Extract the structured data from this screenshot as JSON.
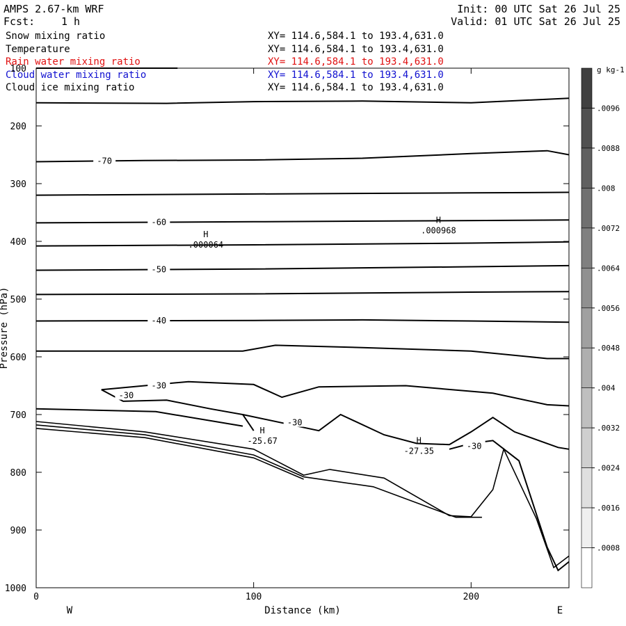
{
  "header": {
    "model": "AMPS 2.67-km WRF",
    "forecast_label": "Fcst:",
    "forecast_value": "1 h",
    "init": "Init: 00 UTC Sat 26 Jul 25",
    "valid": "Valid: 01 UTC Sat 26 Jul 25"
  },
  "fields": [
    {
      "name": "Snow mixing ratio",
      "xy": "XY= 114.6,584.1 to 193.4,631.0",
      "color": "#000000"
    },
    {
      "name": "Temperature",
      "xy": "XY= 114.6,584.1 to 193.4,631.0",
      "color": "#000000"
    },
    {
      "name": "Rain water mixing ratio",
      "xy": "XY= 114.6,584.1 to 193.4,631.0",
      "color": "#e01010"
    },
    {
      "name": "Cloud water mixing ratio",
      "xy": "XY= 114.6,584.1 to 193.4,631.0",
      "color": "#1010d0"
    },
    {
      "name": "Cloud ice mixing ratio",
      "xy": "XY= 114.6,584.1 to 193.4,631.0",
      "color": "#000000"
    }
  ],
  "chart_data": {
    "type": "contour",
    "xlabel": "Distance (km)",
    "ylabel": "Pressure (hPa)",
    "xlim": [
      0,
      245
    ],
    "ylim": [
      1000,
      100
    ],
    "xticks": [
      0,
      100,
      200
    ],
    "yticks": [
      100,
      200,
      300,
      400,
      500,
      600,
      700,
      800,
      900,
      1000
    ],
    "x_end_labels": {
      "left": "W",
      "right": "E"
    },
    "temperature_contours_C": [
      {
        "label": "-70",
        "points": [
          [
            0,
            262
          ],
          [
            50,
            260
          ],
          [
            100,
            259
          ],
          [
            150,
            256
          ],
          [
            200,
            248
          ],
          [
            235,
            243
          ],
          [
            245,
            250
          ]
        ]
      },
      {
        "label": "",
        "points": [
          [
            0,
            320
          ],
          [
            100,
            318
          ],
          [
            200,
            316
          ],
          [
            245,
            315
          ]
        ]
      },
      {
        "label": "-60",
        "points": [
          [
            0,
            368
          ],
          [
            100,
            366
          ],
          [
            200,
            364
          ],
          [
            245,
            363
          ]
        ]
      },
      {
        "label": "",
        "points": [
          [
            0,
            408
          ],
          [
            100,
            406
          ],
          [
            200,
            403
          ],
          [
            245,
            401
          ]
        ]
      },
      {
        "label": "-50",
        "points": [
          [
            0,
            450
          ],
          [
            100,
            448
          ],
          [
            200,
            444
          ],
          [
            245,
            442
          ]
        ]
      },
      {
        "label": "",
        "points": [
          [
            0,
            492
          ],
          [
            100,
            491
          ],
          [
            200,
            488
          ],
          [
            245,
            487
          ]
        ]
      },
      {
        "label": "-40",
        "points": [
          [
            0,
            538
          ],
          [
            100,
            537
          ],
          [
            150,
            536
          ],
          [
            200,
            538
          ],
          [
            245,
            540
          ]
        ]
      },
      {
        "label": "",
        "points": [
          [
            0,
            590
          ],
          [
            95,
            590
          ],
          [
            110,
            580
          ],
          [
            150,
            584
          ],
          [
            200,
            590
          ],
          [
            235,
            603
          ],
          [
            245,
            603
          ]
        ]
      },
      {
        "label": "-30",
        "points": [
          [
            30,
            657
          ],
          [
            70,
            643
          ],
          [
            100,
            648
          ],
          [
            113,
            670
          ],
          [
            130,
            652
          ],
          [
            170,
            650
          ],
          [
            210,
            663
          ],
          [
            235,
            683
          ],
          [
            245,
            685
          ]
        ]
      },
      {
        "label": "-30",
        "points": [
          [
            30,
            657
          ],
          [
            40,
            677
          ],
          [
            60,
            675
          ],
          [
            80,
            690
          ],
          [
            95,
            700
          ],
          [
            100,
            728
          ]
        ]
      },
      {
        "label": "-30",
        "points": [
          [
            95,
            700
          ],
          [
            130,
            728
          ],
          [
            140,
            700
          ],
          [
            160,
            735
          ],
          [
            175,
            750
          ],
          [
            190,
            752
          ],
          [
            200,
            730
          ],
          [
            210,
            705
          ],
          [
            220,
            730
          ],
          [
            240,
            757
          ],
          [
            245,
            760
          ]
        ]
      },
      {
        "label": "",
        "points": [
          [
            0,
            690
          ],
          [
            55,
            695
          ],
          [
            95,
            720
          ]
        ]
      },
      {
        "label": "-30",
        "points": [
          [
            190,
            760
          ],
          [
            200,
            750
          ],
          [
            210,
            745
          ],
          [
            222,
            780
          ],
          [
            235,
            930
          ],
          [
            240,
            970
          ],
          [
            245,
            955
          ]
        ]
      },
      {
        "label": "",
        "points": [
          [
            0,
            160
          ],
          [
            60,
            161
          ],
          [
            100,
            158
          ],
          [
            150,
            157
          ],
          [
            200,
            160
          ],
          [
            245,
            152
          ]
        ]
      }
    ],
    "terrain_lines": [
      {
        "points": [
          [
            0,
            712
          ],
          [
            50,
            730
          ],
          [
            100,
            760
          ],
          [
            123,
            805
          ],
          [
            135,
            795
          ],
          [
            160,
            810
          ],
          [
            190,
            875
          ],
          [
            200,
            877
          ],
          [
            210,
            830
          ],
          [
            215,
            760
          ],
          [
            230,
            880
          ],
          [
            238,
            965
          ],
          [
            245,
            945
          ]
        ]
      },
      {
        "points": [
          [
            0,
            718
          ],
          [
            50,
            735
          ],
          [
            100,
            770
          ],
          [
            123,
            808
          ],
          [
            155,
            825
          ],
          [
            180,
            860
          ],
          [
            193,
            878
          ],
          [
            205,
            878
          ]
        ]
      },
      {
        "points": [
          [
            0,
            724
          ],
          [
            50,
            740
          ],
          [
            100,
            775
          ],
          [
            123,
            812
          ]
        ]
      }
    ],
    "labels": [
      {
        "kind": "H",
        "value": ".000064",
        "x": 78,
        "p": 400
      },
      {
        "kind": "H",
        "value": ".000968",
        "x": 185,
        "p": 375
      },
      {
        "kind": "H",
        "value": "-25.67",
        "x": 104,
        "p": 740
      },
      {
        "kind": "H",
        "value": "-27.35",
        "x": 176,
        "p": 757
      }
    ],
    "colorbar": {
      "units": "g kg-1",
      "ticks": [
        ".0096",
        ".0088",
        ".008",
        ".0072",
        ".0064",
        ".0056",
        ".0048",
        ".004",
        ".0032",
        ".0024",
        ".0016",
        ".0008"
      ],
      "levels": 13
    }
  }
}
